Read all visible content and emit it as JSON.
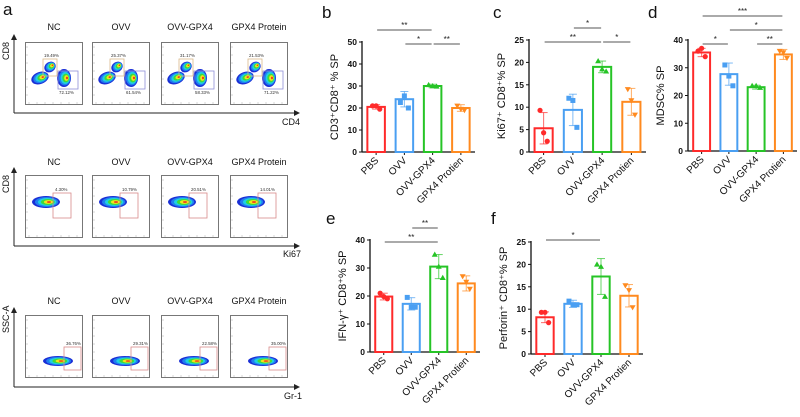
{
  "panel_a": {
    "letter": "a",
    "groups": [
      "NC",
      "OVV",
      "OVV-GPX4",
      "GPX4 Protein"
    ],
    "rows": [
      {
        "y_label": "CD8",
        "x_label": "CD4",
        "type": "cd4cd8",
        "gates": [
          [
            "19.49%",
            "72.12%"
          ],
          [
            "25.37%",
            "61.54%"
          ],
          [
            "31.17%",
            "58.33%"
          ],
          [
            "21.53%",
            "71.22%"
          ]
        ]
      },
      {
        "y_label": "CD8",
        "x_label": "Ki67",
        "type": "ki67",
        "gates": [
          [
            "4.30%"
          ],
          [
            "10.79%"
          ],
          [
            "20.51%"
          ],
          [
            "14.01%"
          ]
        ]
      },
      {
        "y_label": "SSC-A",
        "x_label": "Gr-1",
        "type": "gr1",
        "gates": [
          [
            "36.76%"
          ],
          [
            "29.31%"
          ],
          [
            "22.58%"
          ],
          [
            "35.00%"
          ]
        ]
      }
    ]
  },
  "colors": {
    "PBS": "#ff2a2a",
    "OVV": "#4a9ff2",
    "OVV-GPX4": "#26c426",
    "GPX4 Protien": "#ff8a1f"
  },
  "chart_data": [
    {
      "letter": "b",
      "type": "bar",
      "ylabel": "CD3⁺CD8⁺ % SP",
      "categories": [
        "PBS",
        "OVV",
        "OVV-GPX4",
        "GPX4 Protien"
      ],
      "values": [
        20.5,
        24,
        30,
        20
      ],
      "sd": [
        1,
        3.5,
        0.8,
        1.5
      ],
      "points": [
        [
          21,
          21,
          19.5
        ],
        [
          22.5,
          25.5,
          20
        ],
        [
          30.5,
          30,
          29.8
        ],
        [
          21,
          19.5,
          19
        ]
      ],
      "ylim": [
        0,
        50
      ],
      "yticks": [
        0,
        10,
        20,
        30,
        40,
        50
      ],
      "significance": [
        {
          "from": 0,
          "to": 2,
          "label": "**",
          "level": 0
        },
        {
          "from": 1,
          "to": 2,
          "label": "*",
          "level": 1
        },
        {
          "from": 2,
          "to": 3,
          "label": "**",
          "level": 1
        }
      ]
    },
    {
      "letter": "c",
      "type": "bar",
      "ylabel": "Ki67⁺ CD8⁺% SP",
      "categories": [
        "PBS",
        "OVV",
        "OVV-GPX4",
        "GPX4 Protien"
      ],
      "values": [
        5.3,
        9.4,
        19,
        11.2
      ],
      "sd": [
        3.5,
        3.5,
        1.3,
        3
      ],
      "points": [
        [
          9.3,
          4.3,
          2.4
        ],
        [
          12,
          11.5,
          5.5
        ],
        [
          20.3,
          18.5,
          18
        ],
        [
          14,
          11.5,
          8.3
        ]
      ],
      "ylim": [
        0,
        25
      ],
      "yticks": [
        0,
        5,
        10,
        15,
        20,
        25
      ],
      "significance": [
        {
          "from": 1,
          "to": 2,
          "label": "*",
          "level": 0
        },
        {
          "from": 0,
          "to": 2,
          "label": "**",
          "level": 1
        },
        {
          "from": 2,
          "to": 3,
          "label": "*",
          "level": 1
        }
      ]
    },
    {
      "letter": "d",
      "type": "bar",
      "ylabel": "MDSC% SP",
      "categories": [
        "PBS",
        "OVV",
        "OVV-GPX4",
        "GPX4 Protien"
      ],
      "values": [
        35.5,
        27.7,
        23,
        34.8
      ],
      "sd": [
        1.5,
        4,
        0.7,
        1.8
      ],
      "points": [
        [
          36,
          37,
          34
        ],
        [
          31,
          27,
          23.5
        ],
        [
          23.5,
          23.5,
          22.8
        ],
        [
          36,
          35.5,
          33.5
        ]
      ],
      "ylim": [
        0,
        40
      ],
      "yticks": [
        0,
        10,
        20,
        30,
        40
      ],
      "significance": [
        {
          "from": 0,
          "to": 3,
          "label": "***",
          "level": 0
        },
        {
          "from": 1,
          "to": 3,
          "label": "*",
          "level": 1
        },
        {
          "from": 0,
          "to": 1,
          "label": "*",
          "level": 2
        },
        {
          "from": 2,
          "to": 3,
          "label": "**",
          "level": 2
        }
      ]
    },
    {
      "letter": "e",
      "type": "bar",
      "ylabel": "IFN-γ⁺ CD8⁺% SP",
      "categories": [
        "PBS",
        "OVV",
        "OVV-GPX4",
        "GPX4 Protien"
      ],
      "values": [
        19.8,
        17.2,
        30.5,
        24.5
      ],
      "sd": [
        1.2,
        2.2,
        4.3,
        2.7
      ],
      "points": [
        [
          21,
          19.8,
          19
        ],
        [
          19.5,
          16,
          16
        ],
        [
          34.8,
          30.5,
          26.5
        ],
        [
          27,
          25,
          22.5
        ]
      ],
      "ylim": [
        0,
        40
      ],
      "yticks": [
        0,
        10,
        20,
        30,
        40
      ],
      "significance": [
        {
          "from": 1,
          "to": 2,
          "label": "**",
          "level": 0
        },
        {
          "from": 0,
          "to": 2,
          "label": "**",
          "level": 1
        }
      ]
    },
    {
      "letter": "f",
      "type": "bar",
      "ylabel": "Perforin⁺ CD8⁺% SP",
      "categories": [
        "PBS",
        "OVV",
        "OVV-GPX4",
        "GPX4 Protien"
      ],
      "values": [
        8.2,
        11.2,
        17.3,
        13
      ],
      "sd": [
        1.2,
        0.8,
        4,
        2.5
      ],
      "points": [
        [
          9.3,
          9.3,
          7
        ],
        [
          11.8,
          11,
          11
        ],
        [
          20,
          19.5,
          12.8
        ],
        [
          15.3,
          14.2,
          10.4
        ]
      ],
      "ylim": [
        0,
        25
      ],
      "yticks": [
        0,
        5,
        10,
        15,
        20,
        25
      ],
      "significance": [
        {
          "from": 0,
          "to": 2,
          "label": "*",
          "level": 0
        }
      ]
    }
  ]
}
